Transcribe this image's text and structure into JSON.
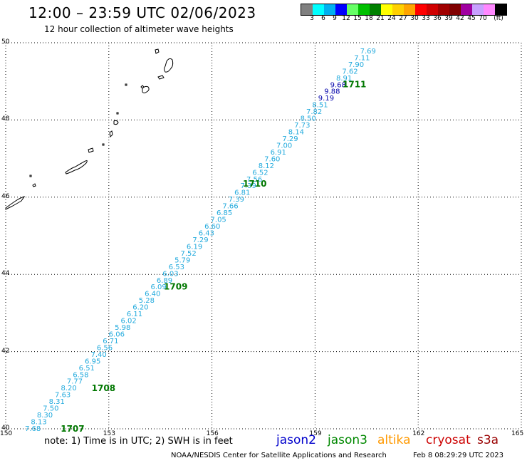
{
  "header": {
    "title": "12:00 – 23:59 UTC 02/06/2023",
    "subtitle": "12 hour collection of altimeter wave heights"
  },
  "legend_scale": {
    "colors": [
      "#808080",
      "#00ffff",
      "#00b0f0",
      "#0000ff",
      "#66ff66",
      "#00c000",
      "#008000",
      "#ffff00",
      "#ffd000",
      "#ffa500",
      "#ff0000",
      "#d00000",
      "#a00000",
      "#800000",
      "#a000a0",
      "#c8a0ff",
      "#ff88ff",
      "#000000"
    ],
    "labels": [
      "3",
      "6",
      "9",
      "12",
      "15",
      "18",
      "21",
      "24",
      "27",
      "30",
      "33",
      "36",
      "39",
      "42",
      "45",
      "70",
      "(ft)"
    ]
  },
  "map": {
    "lon_range": [
      150,
      165
    ],
    "lat_range": [
      40,
      50
    ],
    "lon_ticks": [
      "150",
      "153",
      "156",
      "159",
      "162",
      "165"
    ],
    "lat_ticks": [
      "50",
      "48",
      "46",
      "44",
      "42",
      "40"
    ],
    "grid": "dotted"
  },
  "track": {
    "color_default": "#22aadd",
    "color_high": "#0000aa",
    "heights": [
      "7.68",
      "8.13",
      "8.30",
      "7.50",
      "8.31",
      "7.63",
      "8.20",
      "7.77",
      "6.58",
      "6.51",
      "6.95",
      "7.40",
      "6.56",
      "6.71",
      "6.06",
      "5.98",
      "6.02",
      "6.11",
      "6.20",
      "5.28",
      "6.40",
      "6.09",
      "6.89",
      "6.03",
      "6.53",
      "5.79",
      "7.52",
      "6.19",
      "7.29",
      "6.43",
      "6.60",
      "7.05",
      "6.85",
      "7.66",
      "7.39",
      "6.81",
      "7.39",
      "7.56",
      "6.52",
      "8.12",
      "7.60",
      "6.91",
      "7.00",
      "7.29",
      "8.14",
      "7.73",
      "8.50",
      "7.82",
      "8.51",
      "9.19",
      "9.88",
      "9.68",
      "8.91",
      "7.62",
      "7.90",
      "7.11",
      "7.69"
    ],
    "time_labels": [
      {
        "text": "1707",
        "lon": 151.6,
        "lat": 40.0
      },
      {
        "text": "1708",
        "lon": 152.5,
        "lat": 41.05
      },
      {
        "text": "1709",
        "lon": 154.6,
        "lat": 43.68
      },
      {
        "text": "1710",
        "lon": 156.9,
        "lat": 46.35
      },
      {
        "text": "1711",
        "lon": 159.8,
        "lat": 48.92
      }
    ],
    "time_label_color": "#007700"
  },
  "footer": {
    "note": "note: 1) Time is in UTC; 2) SWH is in feet",
    "satellites": [
      {
        "name": "jason2",
        "color": "#0000cc"
      },
      {
        "name": "jason3",
        "color": "#008800"
      },
      {
        "name": "altika",
        "color": "#ff9900"
      },
      {
        "name": "cryosat",
        "color": "#cc0000"
      },
      {
        "name": "s3a",
        "color": "#990000"
      }
    ],
    "credit": "NOAA/NESDIS Center for Satellite Applications and Research",
    "timestamp": "Feb  8 08:29:29 UTC 2023"
  }
}
